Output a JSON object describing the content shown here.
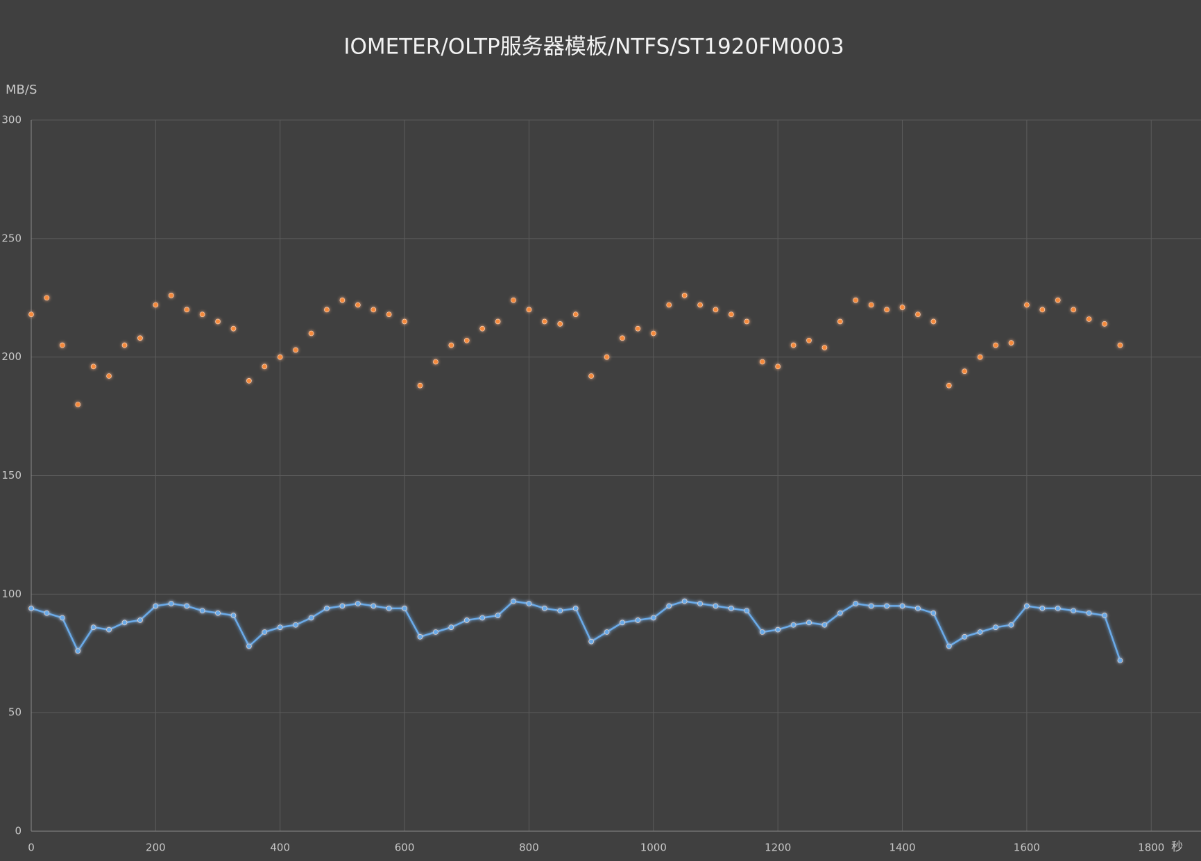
{
  "chart_data": {
    "type": "scatter",
    "title": "IOMETER/OLTP服务器模板/NTFS/ST1920FM0003",
    "y_label": "MB/S",
    "x_label": "秒",
    "xlim": [
      0,
      1880
    ],
    "xticks": [
      0,
      200,
      400,
      600,
      800,
      1000,
      1200,
      1400,
      1600,
      1800
    ],
    "ylim": [
      0,
      300
    ],
    "yticks": [
      0,
      50,
      100,
      150,
      200,
      250,
      300
    ],
    "grid": true,
    "x": [
      0,
      25,
      50,
      75,
      100,
      125,
      150,
      175,
      200,
      225,
      250,
      275,
      300,
      325,
      350,
      375,
      400,
      425,
      450,
      475,
      500,
      525,
      550,
      575,
      600,
      625,
      650,
      675,
      700,
      725,
      750,
      775,
      800,
      825,
      850,
      875,
      900,
      925,
      950,
      975,
      1000,
      1025,
      1050,
      1075,
      1100,
      1125,
      1150,
      1175,
      1200,
      1225,
      1250,
      1275,
      1300,
      1325,
      1350,
      1375,
      1400,
      1425,
      1450,
      1475,
      1500,
      1525,
      1550,
      1575,
      1600,
      1625,
      1650,
      1675,
      1700,
      1725,
      1750
    ],
    "series": [
      {
        "color": "#f58a3c",
        "line": false,
        "values": [
          218,
          225,
          205,
          180,
          196,
          192,
          205,
          208,
          222,
          226,
          220,
          218,
          215,
          212,
          190,
          196,
          200,
          203,
          210,
          220,
          224,
          222,
          220,
          218,
          215,
          188,
          198,
          205,
          207,
          212,
          215,
          224,
          220,
          215,
          214,
          218,
          192,
          200,
          208,
          212,
          210,
          222,
          226,
          222,
          220,
          218,
          215,
          198,
          196,
          205,
          207,
          204,
          215,
          224,
          222,
          220,
          221,
          218,
          215,
          188,
          194,
          200,
          205,
          206,
          222,
          220,
          224,
          220,
          216,
          214,
          205
        ]
      },
      {
        "color": "#6aaae8",
        "line": true,
        "values": [
          94,
          92,
          90,
          76,
          86,
          85,
          88,
          89,
          95,
          96,
          95,
          93,
          92,
          91,
          78,
          84,
          86,
          87,
          90,
          94,
          95,
          96,
          95,
          94,
          94,
          82,
          84,
          86,
          89,
          90,
          91,
          97,
          96,
          94,
          93,
          94,
          80,
          84,
          88,
          89,
          90,
          95,
          97,
          96,
          95,
          94,
          93,
          84,
          85,
          87,
          88,
          87,
          92,
          96,
          95,
          95,
          95,
          94,
          92,
          78,
          82,
          84,
          86,
          87,
          95,
          94,
          94,
          93,
          92,
          91,
          72
        ]
      }
    ]
  }
}
